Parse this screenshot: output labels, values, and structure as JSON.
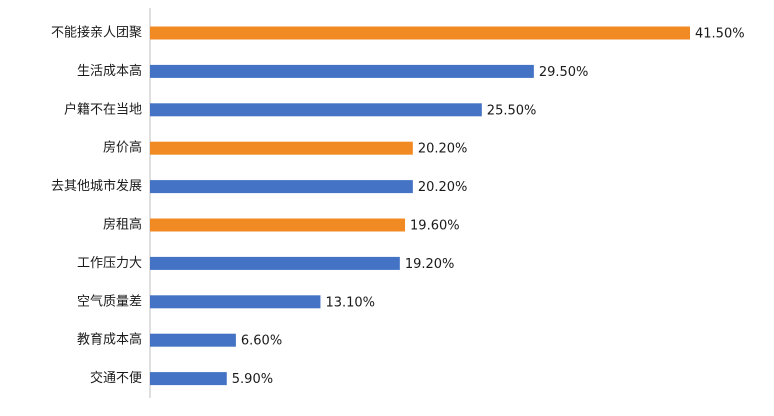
{
  "chart_data": {
    "type": "bar",
    "orientation": "horizontal",
    "categories": [
      "不能接亲人团聚",
      "生活成本高",
      "户籍不在当地",
      "房价高",
      "去其他城市发展",
      "房租高",
      "工作压力大",
      "空气质量差",
      "教育成本高",
      "交通不便"
    ],
    "values": [
      41.5,
      29.5,
      25.5,
      20.2,
      20.2,
      19.6,
      19.2,
      13.1,
      6.6,
      5.9
    ],
    "value_labels": [
      "41.50%",
      "29.50%",
      "25.50%",
      "20.20%",
      "20.20%",
      "19.60%",
      "19.20%",
      "13.10%",
      "6.60%",
      "5.90%"
    ],
    "bar_colors": [
      "#F28A24",
      "#4472C4",
      "#4472C4",
      "#F28A24",
      "#4472C4",
      "#F28A24",
      "#4472C4",
      "#4472C4",
      "#4472C4",
      "#4472C4"
    ],
    "xlim": [
      0,
      41.5
    ],
    "grid": false,
    "legend": "none"
  }
}
